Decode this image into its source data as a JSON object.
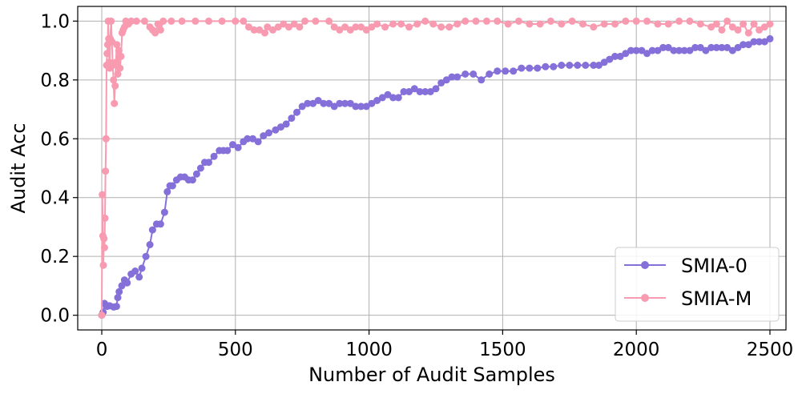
{
  "chart_data": {
    "type": "line",
    "title": "",
    "xlabel": "Number of Audit Samples",
    "ylabel": "Audit Acc",
    "xlim": [
      -90,
      2560
    ],
    "ylim": [
      -0.05,
      1.05
    ],
    "xticks": [
      0,
      500,
      1000,
      1500,
      2000,
      2500
    ],
    "yticks": [
      0.0,
      0.2,
      0.4,
      0.6,
      0.8,
      1.0
    ],
    "xtick_labels": [
      "0",
      "500",
      "1000",
      "1500",
      "2000",
      "2500"
    ],
    "ytick_labels": [
      "0.0",
      "0.2",
      "0.4",
      "0.6",
      "0.8",
      "1.0"
    ],
    "grid": true,
    "legend_position": "bottom-right",
    "series": [
      {
        "name": "SMIA-0",
        "color": "#8470d8",
        "points": [
          [
            0,
            0.0
          ],
          [
            5,
            0.01
          ],
          [
            10,
            0.04
          ],
          [
            15,
            0.035
          ],
          [
            20,
            0.03
          ],
          [
            30,
            0.032
          ],
          [
            45,
            0.028
          ],
          [
            55,
            0.03
          ],
          [
            60,
            0.06
          ],
          [
            65,
            0.08
          ],
          [
            75,
            0.1
          ],
          [
            85,
            0.12
          ],
          [
            95,
            0.11
          ],
          [
            110,
            0.14
          ],
          [
            125,
            0.15
          ],
          [
            140,
            0.13
          ],
          [
            150,
            0.16
          ],
          [
            165,
            0.2
          ],
          [
            180,
            0.24
          ],
          [
            190,
            0.29
          ],
          [
            205,
            0.31
          ],
          [
            220,
            0.31
          ],
          [
            235,
            0.35
          ],
          [
            245,
            0.42
          ],
          [
            255,
            0.44
          ],
          [
            265,
            0.44
          ],
          [
            280,
            0.46
          ],
          [
            295,
            0.47
          ],
          [
            310,
            0.47
          ],
          [
            325,
            0.46
          ],
          [
            340,
            0.46
          ],
          [
            355,
            0.48
          ],
          [
            370,
            0.5
          ],
          [
            385,
            0.52
          ],
          [
            400,
            0.52
          ],
          [
            420,
            0.54
          ],
          [
            440,
            0.56
          ],
          [
            455,
            0.56
          ],
          [
            470,
            0.56
          ],
          [
            490,
            0.58
          ],
          [
            510,
            0.57
          ],
          [
            530,
            0.59
          ],
          [
            545,
            0.6
          ],
          [
            565,
            0.6
          ],
          [
            585,
            0.59
          ],
          [
            605,
            0.61
          ],
          [
            625,
            0.62
          ],
          [
            650,
            0.63
          ],
          [
            670,
            0.64
          ],
          [
            690,
            0.65
          ],
          [
            710,
            0.67
          ],
          [
            730,
            0.69
          ],
          [
            750,
            0.71
          ],
          [
            770,
            0.72
          ],
          [
            790,
            0.72
          ],
          [
            810,
            0.73
          ],
          [
            830,
            0.72
          ],
          [
            850,
            0.72
          ],
          [
            870,
            0.71
          ],
          [
            890,
            0.72
          ],
          [
            910,
            0.72
          ],
          [
            930,
            0.72
          ],
          [
            950,
            0.71
          ],
          [
            970,
            0.71
          ],
          [
            990,
            0.71
          ],
          [
            1010,
            0.72
          ],
          [
            1030,
            0.73
          ],
          [
            1050,
            0.74
          ],
          [
            1070,
            0.75
          ],
          [
            1090,
            0.74
          ],
          [
            1110,
            0.74
          ],
          [
            1130,
            0.76
          ],
          [
            1150,
            0.76
          ],
          [
            1170,
            0.77
          ],
          [
            1190,
            0.76
          ],
          [
            1210,
            0.76
          ],
          [
            1230,
            0.76
          ],
          [
            1250,
            0.77
          ],
          [
            1270,
            0.79
          ],
          [
            1290,
            0.8
          ],
          [
            1310,
            0.81
          ],
          [
            1330,
            0.81
          ],
          [
            1360,
            0.82
          ],
          [
            1390,
            0.82
          ],
          [
            1420,
            0.8
          ],
          [
            1450,
            0.82
          ],
          [
            1480,
            0.83
          ],
          [
            1510,
            0.83
          ],
          [
            1540,
            0.83
          ],
          [
            1570,
            0.84
          ],
          [
            1600,
            0.84
          ],
          [
            1630,
            0.84
          ],
          [
            1660,
            0.845
          ],
          [
            1690,
            0.845
          ],
          [
            1720,
            0.85
          ],
          [
            1750,
            0.85
          ],
          [
            1780,
            0.85
          ],
          [
            1810,
            0.85
          ],
          [
            1840,
            0.85
          ],
          [
            1860,
            0.85
          ],
          [
            1880,
            0.86
          ],
          [
            1900,
            0.87
          ],
          [
            1920,
            0.88
          ],
          [
            1940,
            0.88
          ],
          [
            1960,
            0.89
          ],
          [
            1980,
            0.9
          ],
          [
            2000,
            0.9
          ],
          [
            2020,
            0.9
          ],
          [
            2040,
            0.89
          ],
          [
            2060,
            0.9
          ],
          [
            2080,
            0.9
          ],
          [
            2100,
            0.91
          ],
          [
            2120,
            0.91
          ],
          [
            2140,
            0.9
          ],
          [
            2160,
            0.9
          ],
          [
            2180,
            0.9
          ],
          [
            2200,
            0.9
          ],
          [
            2220,
            0.91
          ],
          [
            2240,
            0.91
          ],
          [
            2260,
            0.9
          ],
          [
            2280,
            0.91
          ],
          [
            2300,
            0.91
          ],
          [
            2320,
            0.91
          ],
          [
            2340,
            0.91
          ],
          [
            2360,
            0.9
          ],
          [
            2380,
            0.91
          ],
          [
            2400,
            0.92
          ],
          [
            2420,
            0.92
          ],
          [
            2440,
            0.93
          ],
          [
            2460,
            0.93
          ],
          [
            2480,
            0.93
          ],
          [
            2500,
            0.94
          ]
        ]
      },
      {
        "name": "SMIA-M",
        "color": "#f89ab0",
        "points": [
          [
            0,
            0.0
          ],
          [
            2,
            0.41
          ],
          [
            4,
            0.27
          ],
          [
            6,
            0.17
          ],
          [
            8,
            0.26
          ],
          [
            10,
            0.23
          ],
          [
            12,
            0.33
          ],
          [
            14,
            0.49
          ],
          [
            16,
            0.6
          ],
          [
            18,
            0.85
          ],
          [
            20,
            0.89
          ],
          [
            22,
            0.92
          ],
          [
            24,
            1.0
          ],
          [
            26,
            0.94
          ],
          [
            28,
            0.86
          ],
          [
            30,
            0.84
          ],
          [
            32,
            0.94
          ],
          [
            35,
            1.0
          ],
          [
            38,
            0.93
          ],
          [
            41,
            0.85
          ],
          [
            44,
            0.8
          ],
          [
            47,
            0.72
          ],
          [
            50,
            0.78
          ],
          [
            53,
            0.86
          ],
          [
            56,
            0.92
          ],
          [
            60,
            0.82
          ],
          [
            64,
            0.9
          ],
          [
            68,
            0.84
          ],
          [
            72,
            0.88
          ],
          [
            76,
            0.96
          ],
          [
            80,
            0.97
          ],
          [
            85,
            0.98
          ],
          [
            90,
            1.0
          ],
          [
            100,
            0.99
          ],
          [
            110,
            1.0
          ],
          [
            130,
            1.0
          ],
          [
            160,
            1.0
          ],
          [
            180,
            0.98
          ],
          [
            190,
            0.97
          ],
          [
            200,
            0.96
          ],
          [
            210,
            0.99
          ],
          [
            220,
            0.97
          ],
          [
            230,
            1.0
          ],
          [
            260,
            1.0
          ],
          [
            300,
            1.0
          ],
          [
            350,
            1.0
          ],
          [
            400,
            1.0
          ],
          [
            450,
            1.0
          ],
          [
            500,
            1.0
          ],
          [
            530,
            1.0
          ],
          [
            550,
            0.98
          ],
          [
            570,
            0.97
          ],
          [
            590,
            0.97
          ],
          [
            610,
            0.96
          ],
          [
            620,
            0.98
          ],
          [
            640,
            0.97
          ],
          [
            660,
            0.98
          ],
          [
            680,
            0.99
          ],
          [
            700,
            0.98
          ],
          [
            720,
            0.99
          ],
          [
            740,
            0.98
          ],
          [
            760,
            1.0
          ],
          [
            800,
            1.0
          ],
          [
            850,
            1.0
          ],
          [
            870,
            0.98
          ],
          [
            890,
            0.97
          ],
          [
            910,
            0.98
          ],
          [
            930,
            0.97
          ],
          [
            950,
            0.98
          ],
          [
            970,
            0.98
          ],
          [
            990,
            0.97
          ],
          [
            1010,
            0.98
          ],
          [
            1030,
            0.99
          ],
          [
            1060,
            0.98
          ],
          [
            1090,
            0.99
          ],
          [
            1120,
            0.99
          ],
          [
            1150,
            0.98
          ],
          [
            1180,
            0.99
          ],
          [
            1210,
            1.0
          ],
          [
            1240,
            0.99
          ],
          [
            1270,
            0.98
          ],
          [
            1300,
            0.98
          ],
          [
            1330,
            0.99
          ],
          [
            1360,
            1.0
          ],
          [
            1400,
            1.0
          ],
          [
            1440,
            1.0
          ],
          [
            1480,
            1.0
          ],
          [
            1520,
            0.99
          ],
          [
            1560,
            1.0
          ],
          [
            1600,
            0.99
          ],
          [
            1640,
            0.99
          ],
          [
            1680,
            1.0
          ],
          [
            1720,
            0.99
          ],
          [
            1760,
            1.0
          ],
          [
            1800,
            0.99
          ],
          [
            1840,
            0.98
          ],
          [
            1880,
            0.99
          ],
          [
            1920,
            0.99
          ],
          [
            1960,
            1.0
          ],
          [
            2000,
            1.0
          ],
          [
            2040,
            1.0
          ],
          [
            2080,
            0.99
          ],
          [
            2120,
            0.99
          ],
          [
            2160,
            1.0
          ],
          [
            2200,
            1.0
          ],
          [
            2240,
            0.99
          ],
          [
            2280,
            0.98
          ],
          [
            2300,
            0.99
          ],
          [
            2320,
            0.97
          ],
          [
            2340,
            1.0
          ],
          [
            2360,
            0.98
          ],
          [
            2380,
            0.97
          ],
          [
            2400,
            0.99
          ],
          [
            2420,
            0.96
          ],
          [
            2440,
            0.99
          ],
          [
            2460,
            0.97
          ],
          [
            2480,
            0.98
          ],
          [
            2500,
            0.99
          ]
        ]
      }
    ]
  }
}
